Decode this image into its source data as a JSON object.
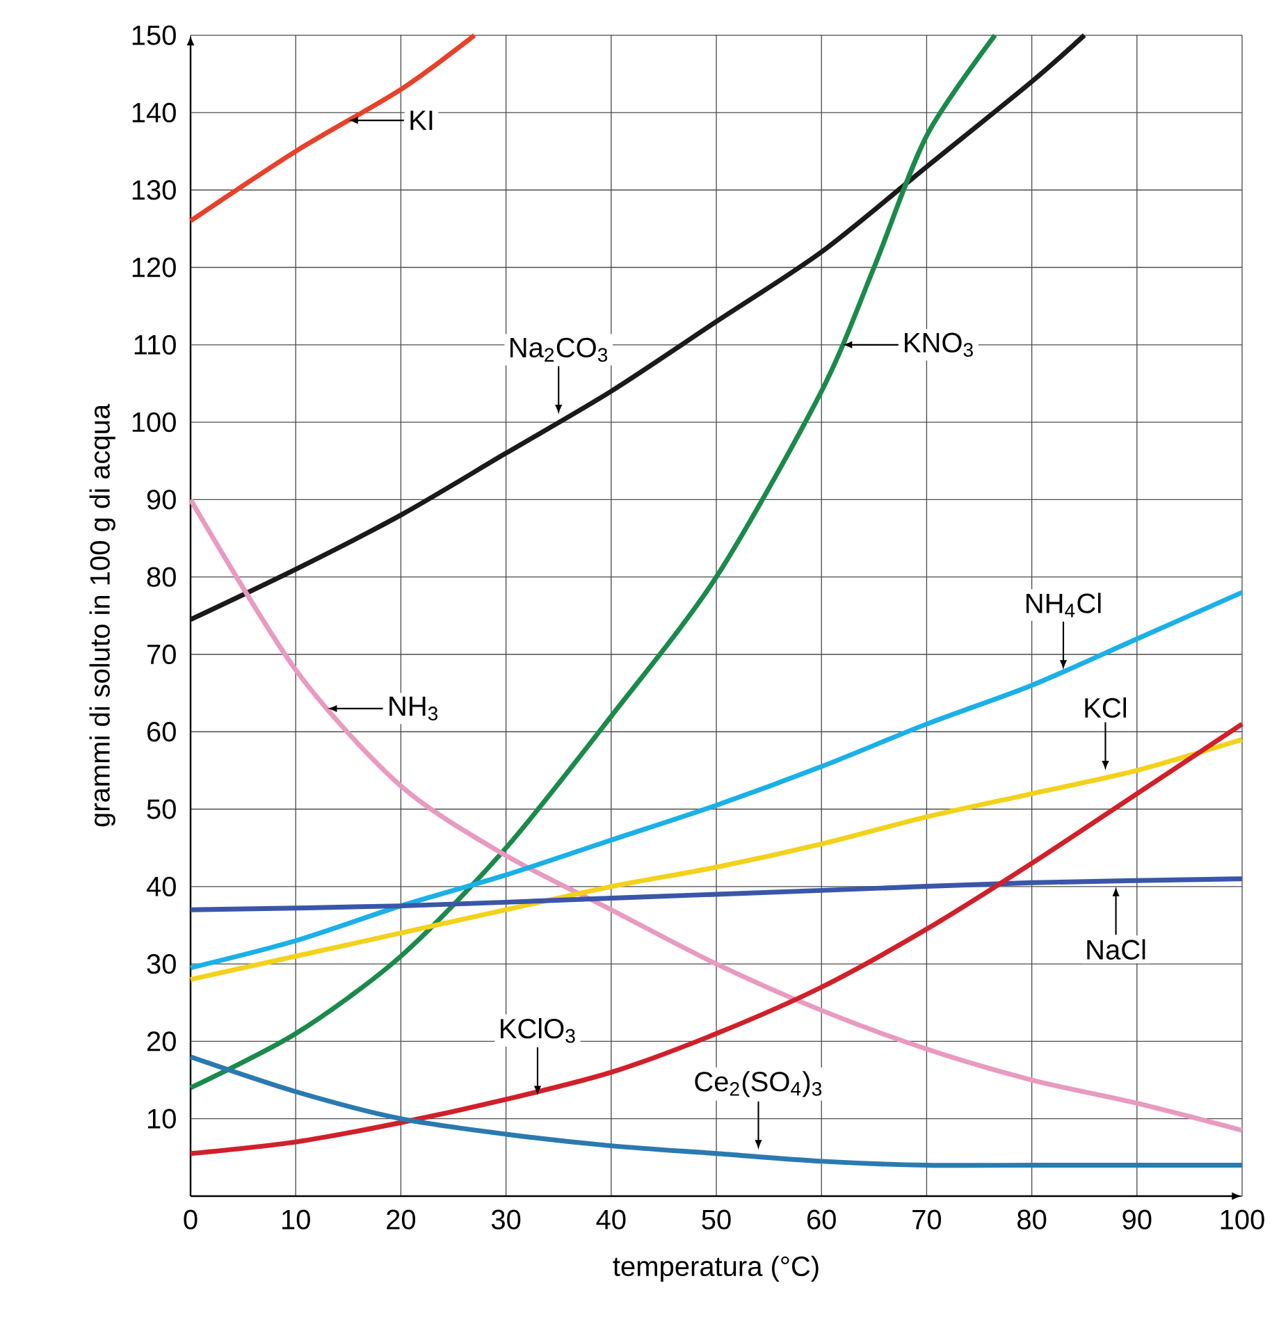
{
  "chart_data": {
    "type": "line",
    "xlabel": "temperatura (°C)",
    "ylabel": "grammi di soluto in 100 g di acqua",
    "xlim": [
      0,
      100
    ],
    "ylim": [
      0,
      150
    ],
    "xticks": [
      0,
      10,
      20,
      30,
      40,
      50,
      60,
      70,
      80,
      90,
      100
    ],
    "yticks": [
      {
        "value": 0,
        "label": null
      },
      10,
      20,
      30,
      40,
      50,
      60,
      70,
      80,
      90,
      100,
      110,
      120,
      130,
      140,
      150
    ],
    "grid": true,
    "marker": "none",
    "line_style": "solid",
    "series": [
      {
        "color": "#e8412a",
        "x": [
          0,
          10,
          20,
          27
        ],
        "values": [
          126,
          135,
          143,
          150
        ]
      },
      {
        "color": "#1a1a1a",
        "x": [
          0,
          10,
          20,
          30,
          40,
          50,
          60,
          70,
          80,
          85
        ],
        "values": [
          74.5,
          81,
          88,
          96,
          104,
          113,
          122,
          133,
          144,
          150
        ]
      },
      {
        "color": "#1a8a4a",
        "x": [
          0,
          10,
          20,
          30,
          40,
          50,
          60,
          65,
          70,
          76.5
        ],
        "values": [
          14,
          21,
          31,
          45,
          62,
          80,
          104,
          120,
          137,
          150
        ]
      },
      {
        "color": "#e89ac0",
        "x": [
          0,
          10,
          20,
          30,
          40,
          50,
          60,
          70,
          80,
          90,
          100
        ],
        "values": [
          90,
          68,
          53,
          44,
          37,
          30,
          24,
          19,
          15,
          12,
          8.5
        ]
      },
      {
        "color": "#1ab0e8",
        "x": [
          0,
          10,
          20,
          30,
          40,
          50,
          60,
          70,
          80,
          90,
          100
        ],
        "values": [
          29.5,
          33,
          37.5,
          41.5,
          46,
          50.5,
          55.5,
          61,
          66,
          72,
          78
        ]
      },
      {
        "color": "#f2d21a",
        "x": [
          0,
          10,
          20,
          30,
          40,
          50,
          60,
          70,
          80,
          90,
          100
        ],
        "values": [
          28,
          31,
          34,
          37,
          40,
          42.5,
          45.5,
          49,
          52,
          55,
          59
        ]
      },
      {
        "color": "#3a56a8",
        "x": [
          0,
          20,
          40,
          60,
          80,
          100
        ],
        "values": [
          37,
          37.5,
          38.5,
          39.5,
          40.5,
          41
        ]
      },
      {
        "color": "#d0202a",
        "x": [
          0,
          10,
          20,
          30,
          40,
          50,
          60,
          70,
          80,
          90,
          100
        ],
        "values": [
          5.5,
          7,
          9.5,
          12.5,
          16,
          21,
          27,
          34.5,
          43,
          52,
          61
        ]
      },
      {
        "color": "#2a7ab0",
        "x": [
          0,
          10,
          20,
          30,
          40,
          50,
          60,
          70,
          80,
          90,
          100
        ],
        "values": [
          18,
          13.5,
          10,
          8,
          6.5,
          5.5,
          4.5,
          4,
          4,
          4,
          4
        ]
      }
    ],
    "annotations": [
      {
        "text": "KI",
        "x": 15,
        "y": 139
      },
      {
        "text": "Na$_{2}$CO$_{3}$",
        "x": 35,
        "y": 101
      },
      {
        "text": "KNO$_{3}$",
        "x": 62,
        "y": 110
      },
      {
        "text": "NH$_{3}$",
        "x": 13,
        "y": 63
      },
      {
        "text": "NH$_{4}$Cl",
        "x": 83,
        "y": 68
      },
      {
        "text": "KCl",
        "x": 87,
        "y": 55
      },
      {
        "text": "NaCl",
        "x": 88,
        "y": 40
      },
      {
        "text": "KClO$_{3}$",
        "x": 33,
        "y": 13
      },
      {
        "text": "Ce$_{2}$(SO$_{4}$)$_{3}$",
        "x": 54,
        "y": 6
      }
    ]
  }
}
